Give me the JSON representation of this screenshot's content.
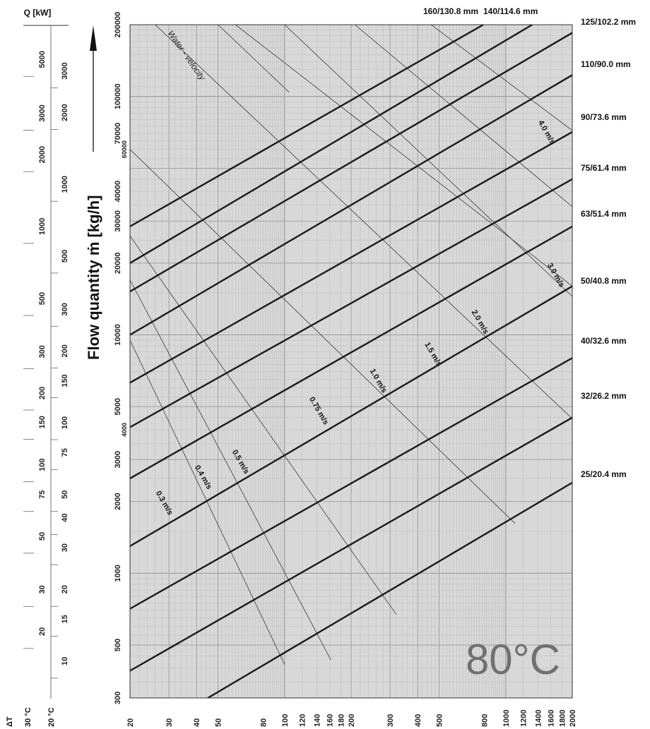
{
  "chart_data": {
    "type": "line",
    "xscale": "log",
    "yscale": "log",
    "xlim": [
      20,
      2000
    ],
    "ylim": [
      300,
      200000
    ],
    "ylabel": "Flow quantity ṁ [kg/h]",
    "temperature_label": "80°C",
    "water_velocity_label": "Water - velocity",
    "x_ticks": [
      20,
      30,
      40,
      50,
      80,
      100,
      120,
      140,
      160,
      180,
      200,
      300,
      400,
      500,
      800,
      1000,
      1200,
      1400,
      1600,
      1800,
      2000
    ],
    "y_ticks": [
      300,
      500,
      1000,
      2000,
      3000,
      4000,
      5000,
      10000,
      20000,
      30000,
      40000,
      60000,
      70000,
      100000,
      200000
    ],
    "pipe_series": [
      {
        "name": "160/130.8 mm",
        "x": [
          20,
          792
        ],
        "y": [
          28500,
          200000
        ]
      },
      {
        "name": "140/114.6 mm",
        "x": [
          20,
          1318
        ],
        "y": [
          20000,
          200000
        ]
      },
      {
        "name": "125/102.2 mm",
        "x": [
          20,
          2000
        ],
        "y": [
          15200,
          185000
        ]
      },
      {
        "name": "110/90.0 mm",
        "x": [
          20,
          2000
        ],
        "y": [
          10000,
          123000
        ]
      },
      {
        "name": "90/73.6 mm",
        "x": [
          20,
          2000
        ],
        "y": [
          6300,
          71000
        ]
      },
      {
        "name": "75/61.4 mm",
        "x": [
          20,
          2000
        ],
        "y": [
          4100,
          45000
        ]
      },
      {
        "name": "63/51.4 mm",
        "x": [
          20,
          2000
        ],
        "y": [
          2500,
          28500
        ]
      },
      {
        "name": "50/40.8 mm",
        "x": [
          20,
          2000
        ],
        "y": [
          1300,
          16000
        ]
      },
      {
        "name": "40/32.6 mm",
        "x": [
          20,
          2000
        ],
        "y": [
          710,
          8000
        ]
      },
      {
        "name": "32/26.2 mm",
        "x": [
          20,
          2000
        ],
        "y": [
          390,
          4500
        ]
      },
      {
        "name": "25/20.4 mm",
        "x": [
          45,
          2000
        ],
        "y": [
          300,
          2400
        ]
      }
    ],
    "velocity_lines": [
      {
        "name": "0.3 m/s",
        "x": [
          20,
          100
        ],
        "y": [
          9500,
          415
        ]
      },
      {
        "name": "0.4 m/s",
        "x": [
          20,
          162
        ],
        "y": [
          17000,
          433
        ]
      },
      {
        "name": "0.5 m/s",
        "x": [
          20,
          320
        ],
        "y": [
          26000,
          672
        ]
      },
      {
        "name": "0.75 m/s",
        "x": [
          20,
          1100
        ],
        "y": [
          60000,
          1620
        ]
      },
      {
        "name": "1.0 m/s",
        "x": [
          26,
          2000
        ],
        "y": [
          200000,
          4450
        ]
      },
      {
        "name": "1.5 m/s",
        "x": [
          60,
          2000
        ],
        "y": [
          200000,
          16000
        ]
      },
      {
        "name": "2.0 m/s",
        "x": [
          100,
          2000
        ],
        "y": [
          200000,
          14500
        ]
      },
      {
        "name": "3.0 m/s",
        "x": [
          208,
          2000
        ],
        "y": [
          200000,
          34500
        ]
      },
      {
        "name": "4.0 m/s",
        "x": [
          460,
          2000
        ],
        "y": [
          200000,
          72000
        ]
      },
      {
        "name": "Water - velocity",
        "x": [
          50,
          105
        ],
        "y": [
          200000,
          104000
        ]
      }
    ],
    "velocity_labels": [
      {
        "text": "0.3 m/s",
        "x": 28,
        "y": 1950
      },
      {
        "text": "0.4 m/s",
        "x": 42,
        "y": 2500
      },
      {
        "text": "0.5 m/s",
        "x": 62,
        "y": 2900
      },
      {
        "text": "0.75 m/s",
        "x": 140,
        "y": 4750
      },
      {
        "text": "1.0 m/s",
        "x": 260,
        "y": 6350
      },
      {
        "text": "1.5 m/s",
        "x": 460,
        "y": 8200
      },
      {
        "text": "2.0 m/s",
        "x": 750,
        "y": 11200
      },
      {
        "text": "3.0 m/s",
        "x": 1650,
        "y": 17600
      },
      {
        "text": "4.0 m/s",
        "x": 1500,
        "y": 70000
      }
    ],
    "kw_axis": {
      "title": "Q [kW]",
      "dt_label": "ΔT",
      "columns": [
        {
          "header": "30 °C",
          "ticks": [
            {
              "label": "5000",
              "y": 143000
            },
            {
              "label": "3000",
              "y": 85000
            },
            {
              "label": "2000",
              "y": 57000
            },
            {
              "label": "1000",
              "y": 28500
            },
            {
              "label": "500",
              "y": 14200
            },
            {
              "label": "300",
              "y": 8500
            },
            {
              "label": "200",
              "y": 5700
            },
            {
              "label": "150",
              "y": 4300
            },
            {
              "label": "100",
              "y": 2850
            },
            {
              "label": "75",
              "y": 2140
            },
            {
              "label": "50",
              "y": 1430
            },
            {
              "label": "30",
              "y": 855
            },
            {
              "label": "20",
              "y": 570
            }
          ]
        },
        {
          "header": "20 °C",
          "ticks": [
            {
              "label": "3000",
              "y": 128000
            },
            {
              "label": "2000",
              "y": 85600
            },
            {
              "label": "1000",
              "y": 42800
            },
            {
              "label": "500",
              "y": 21400
            },
            {
              "label": "300",
              "y": 12800
            },
            {
              "label": "200",
              "y": 8560
            },
            {
              "label": "150",
              "y": 6420
            },
            {
              "label": "100",
              "y": 4280
            },
            {
              "label": "75",
              "y": 3210
            },
            {
              "label": "50",
              "y": 2140
            },
            {
              "label": "40",
              "y": 1710
            },
            {
              "label": "30",
              "y": 1280
            },
            {
              "label": "20",
              "y": 856
            },
            {
              "label": "15",
              "y": 642
            },
            {
              "label": "10",
              "y": 428
            }
          ]
        }
      ]
    }
  },
  "colors": {
    "plot_background": "#d8d8d8",
    "grid_major": "#9a9a9a",
    "grid_minor": "#bdbdbd",
    "pipe_line": "#1a1a1a",
    "velocity_line": "#3a3a3a",
    "temperature_text": "#707070"
  }
}
